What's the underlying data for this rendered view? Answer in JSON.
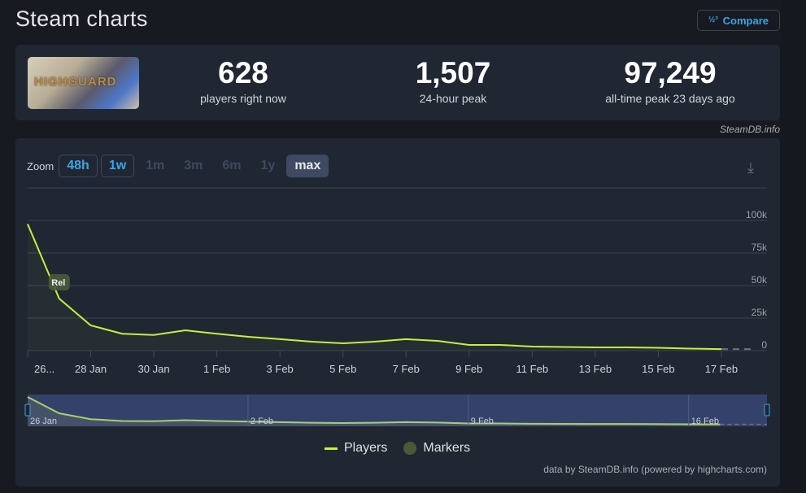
{
  "header": {
    "title": "Steam charts",
    "compare_label": "Compare",
    "compare_icon": "numbers-icon"
  },
  "game": {
    "thumbnail_logo": "HIGHGUARD"
  },
  "stats": [
    {
      "value": "628",
      "label": "players right now"
    },
    {
      "value": "1,507",
      "label": "24-hour peak"
    },
    {
      "value": "97,249",
      "label": "all-time peak 23 days ago"
    }
  ],
  "credit": "SteamDB.info",
  "zoom": {
    "label": "Zoom",
    "buttons": [
      "48h",
      "1w",
      "1m",
      "3m",
      "6m",
      "1y",
      "max"
    ],
    "selected": "max",
    "download_icon": "download-icon"
  },
  "chart_data": {
    "type": "line",
    "x": [
      "26 Jan",
      "27 Jan",
      "28 Jan",
      "29 Jan",
      "30 Jan",
      "31 Jan",
      "1 Feb",
      "2 Feb",
      "3 Feb",
      "4 Feb",
      "5 Feb",
      "6 Feb",
      "7 Feb",
      "8 Feb",
      "9 Feb",
      "10 Feb",
      "11 Feb",
      "12 Feb",
      "13 Feb",
      "14 Feb",
      "15 Feb",
      "16 Feb",
      "17 Feb"
    ],
    "series": [
      {
        "name": "Players",
        "color": "#c6f03e",
        "values": [
          97249,
          40000,
          19400,
          13000,
          12000,
          15600,
          13000,
          10600,
          8800,
          6900,
          5600,
          6900,
          8800,
          7500,
          4400,
          4400,
          3100,
          2800,
          2500,
          2500,
          2200,
          1600,
          1200
        ]
      }
    ],
    "markers": [
      {
        "label": "Rel",
        "x": "27 Jan"
      }
    ],
    "legend": [
      "Players",
      "Markers"
    ],
    "x_tick_labels": [
      "26...",
      "28 Jan",
      "30 Jan",
      "1 Feb",
      "3 Feb",
      "5 Feb",
      "7 Feb",
      "9 Feb",
      "11 Feb",
      "13 Feb",
      "15 Feb",
      "17 Feb"
    ],
    "y_tick_labels": [
      "0",
      "25k",
      "50k",
      "75k",
      "100k"
    ],
    "ylim": [
      0,
      125000
    ],
    "navigator_labels": [
      "26 Jan",
      "2 Feb",
      "9 Feb",
      "16 Feb"
    ],
    "grid": true,
    "legend_position": "bottom"
  },
  "footer": "data by SteamDB.info (powered by highcharts.com)"
}
